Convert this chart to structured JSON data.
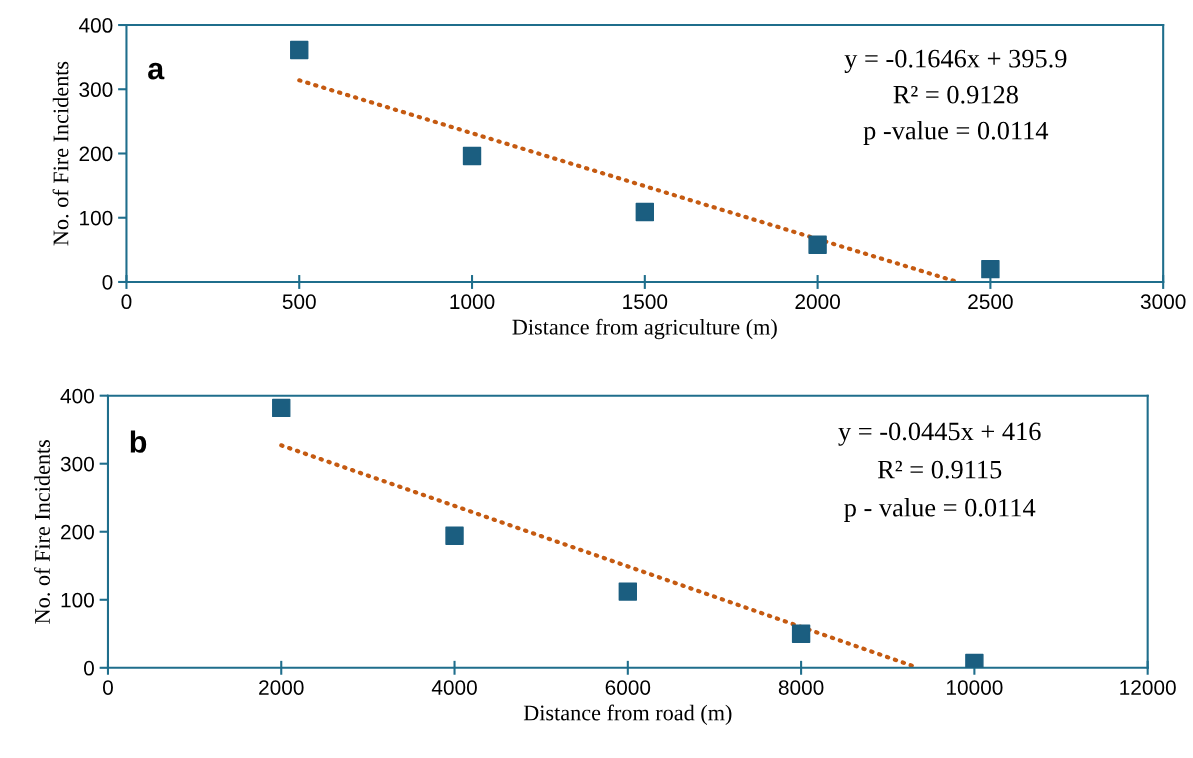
{
  "chart_data": [
    {
      "type": "scatter",
      "title": "a",
      "xlabel": "Distance from agriculture (m)",
      "ylabel": "No. of Fire Incidents",
      "xlim": [
        0,
        3000
      ],
      "xticks": [
        0,
        500,
        1000,
        1500,
        2000,
        2500,
        3000
      ],
      "ylim": [
        0,
        400
      ],
      "yticks": [
        0,
        100,
        200,
        300,
        400
      ],
      "grid": false,
      "annotations": [
        "y = -0.1646x + 395.9",
        "R² = 0.9128",
        "p -value = 0.0114"
      ],
      "series": [
        {
          "color": "#1b5e80",
          "marker": "square",
          "x": [
            500,
            1000,
            1500,
            2000,
            2500
          ],
          "values": [
            361,
            196,
            109,
            58,
            20
          ]
        },
        {
          "type": "line",
          "color": "#c55a11",
          "marker": "none",
          "line_style": "dotted",
          "x": [
            500,
            2405
          ],
          "values": [
            314,
            0
          ]
        }
      ]
    },
    {
      "type": "scatter",
      "title": "b",
      "xlabel": "Distance from road (m)",
      "ylabel": "No. of Fire Incidents",
      "xlim": [
        0,
        12000
      ],
      "xticks": [
        0,
        2000,
        4000,
        6000,
        8000,
        10000,
        12000
      ],
      "ylim": [
        0,
        400
      ],
      "yticks": [
        0,
        100,
        200,
        300,
        400
      ],
      "grid": false,
      "annotations": [
        "y = -0.0445x + 416",
        "R² = 0.9115",
        "p - value = 0.0114"
      ],
      "series": [
        {
          "color": "#1b5e80",
          "marker": "square",
          "x": [
            2000,
            4000,
            6000,
            8000,
            10000
          ],
          "values": [
            382,
            194,
            112,
            50,
            7
          ]
        },
        {
          "type": "line",
          "color": "#c55a11",
          "marker": "none",
          "line_style": "dotted",
          "x": [
            2000,
            9350
          ],
          "values": [
            327,
            0
          ]
        }
      ]
    }
  ]
}
